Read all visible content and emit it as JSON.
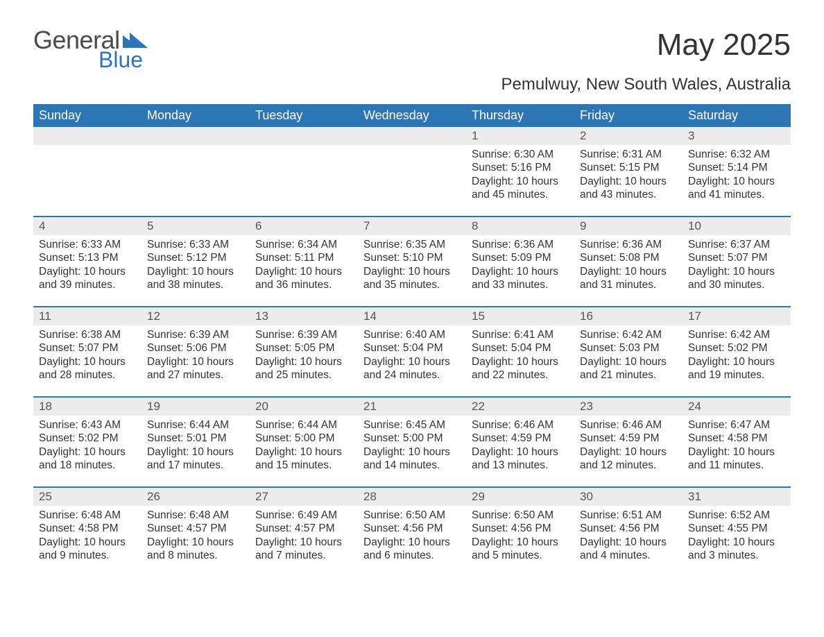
{
  "brand": {
    "word1": "General",
    "word2": "Blue",
    "accent_color": "#2e75b6"
  },
  "title": "May 2025",
  "subtitle": "Pemulwuy, New South Wales, Australia",
  "colors": {
    "header_bg": "#2e75b6",
    "header_text": "#ffffff",
    "daynum_bg": "#ececec",
    "daynum_text": "#555555",
    "body_text": "#333333",
    "page_bg": "#ffffff",
    "week_border": "#2e75b6"
  },
  "typography": {
    "title_fontsize": 44,
    "subtitle_fontsize": 24,
    "header_fontsize": 18,
    "daynum_fontsize": 17,
    "body_fontsize": 15.5,
    "font_family": "Arial"
  },
  "layout": {
    "columns": 7,
    "rows": 5,
    "first_day_column_index": 4
  },
  "day_headers": [
    "Sunday",
    "Monday",
    "Tuesday",
    "Wednesday",
    "Thursday",
    "Friday",
    "Saturday"
  ],
  "days": [
    {
      "n": "1",
      "sunrise": "Sunrise: 6:30 AM",
      "sunset": "Sunset: 5:16 PM",
      "daylight": "Daylight: 10 hours and 45 minutes."
    },
    {
      "n": "2",
      "sunrise": "Sunrise: 6:31 AM",
      "sunset": "Sunset: 5:15 PM",
      "daylight": "Daylight: 10 hours and 43 minutes."
    },
    {
      "n": "3",
      "sunrise": "Sunrise: 6:32 AM",
      "sunset": "Sunset: 5:14 PM",
      "daylight": "Daylight: 10 hours and 41 minutes."
    },
    {
      "n": "4",
      "sunrise": "Sunrise: 6:33 AM",
      "sunset": "Sunset: 5:13 PM",
      "daylight": "Daylight: 10 hours and 39 minutes."
    },
    {
      "n": "5",
      "sunrise": "Sunrise: 6:33 AM",
      "sunset": "Sunset: 5:12 PM",
      "daylight": "Daylight: 10 hours and 38 minutes."
    },
    {
      "n": "6",
      "sunrise": "Sunrise: 6:34 AM",
      "sunset": "Sunset: 5:11 PM",
      "daylight": "Daylight: 10 hours and 36 minutes."
    },
    {
      "n": "7",
      "sunrise": "Sunrise: 6:35 AM",
      "sunset": "Sunset: 5:10 PM",
      "daylight": "Daylight: 10 hours and 35 minutes."
    },
    {
      "n": "8",
      "sunrise": "Sunrise: 6:36 AM",
      "sunset": "Sunset: 5:09 PM",
      "daylight": "Daylight: 10 hours and 33 minutes."
    },
    {
      "n": "9",
      "sunrise": "Sunrise: 6:36 AM",
      "sunset": "Sunset: 5:08 PM",
      "daylight": "Daylight: 10 hours and 31 minutes."
    },
    {
      "n": "10",
      "sunrise": "Sunrise: 6:37 AM",
      "sunset": "Sunset: 5:07 PM",
      "daylight": "Daylight: 10 hours and 30 minutes."
    },
    {
      "n": "11",
      "sunrise": "Sunrise: 6:38 AM",
      "sunset": "Sunset: 5:07 PM",
      "daylight": "Daylight: 10 hours and 28 minutes."
    },
    {
      "n": "12",
      "sunrise": "Sunrise: 6:39 AM",
      "sunset": "Sunset: 5:06 PM",
      "daylight": "Daylight: 10 hours and 27 minutes."
    },
    {
      "n": "13",
      "sunrise": "Sunrise: 6:39 AM",
      "sunset": "Sunset: 5:05 PM",
      "daylight": "Daylight: 10 hours and 25 minutes."
    },
    {
      "n": "14",
      "sunrise": "Sunrise: 6:40 AM",
      "sunset": "Sunset: 5:04 PM",
      "daylight": "Daylight: 10 hours and 24 minutes."
    },
    {
      "n": "15",
      "sunrise": "Sunrise: 6:41 AM",
      "sunset": "Sunset: 5:04 PM",
      "daylight": "Daylight: 10 hours and 22 minutes."
    },
    {
      "n": "16",
      "sunrise": "Sunrise: 6:42 AM",
      "sunset": "Sunset: 5:03 PM",
      "daylight": "Daylight: 10 hours and 21 minutes."
    },
    {
      "n": "17",
      "sunrise": "Sunrise: 6:42 AM",
      "sunset": "Sunset: 5:02 PM",
      "daylight": "Daylight: 10 hours and 19 minutes."
    },
    {
      "n": "18",
      "sunrise": "Sunrise: 6:43 AM",
      "sunset": "Sunset: 5:02 PM",
      "daylight": "Daylight: 10 hours and 18 minutes."
    },
    {
      "n": "19",
      "sunrise": "Sunrise: 6:44 AM",
      "sunset": "Sunset: 5:01 PM",
      "daylight": "Daylight: 10 hours and 17 minutes."
    },
    {
      "n": "20",
      "sunrise": "Sunrise: 6:44 AM",
      "sunset": "Sunset: 5:00 PM",
      "daylight": "Daylight: 10 hours and 15 minutes."
    },
    {
      "n": "21",
      "sunrise": "Sunrise: 6:45 AM",
      "sunset": "Sunset: 5:00 PM",
      "daylight": "Daylight: 10 hours and 14 minutes."
    },
    {
      "n": "22",
      "sunrise": "Sunrise: 6:46 AM",
      "sunset": "Sunset: 4:59 PM",
      "daylight": "Daylight: 10 hours and 13 minutes."
    },
    {
      "n": "23",
      "sunrise": "Sunrise: 6:46 AM",
      "sunset": "Sunset: 4:59 PM",
      "daylight": "Daylight: 10 hours and 12 minutes."
    },
    {
      "n": "24",
      "sunrise": "Sunrise: 6:47 AM",
      "sunset": "Sunset: 4:58 PM",
      "daylight": "Daylight: 10 hours and 11 minutes."
    },
    {
      "n": "25",
      "sunrise": "Sunrise: 6:48 AM",
      "sunset": "Sunset: 4:58 PM",
      "daylight": "Daylight: 10 hours and 9 minutes."
    },
    {
      "n": "26",
      "sunrise": "Sunrise: 6:48 AM",
      "sunset": "Sunset: 4:57 PM",
      "daylight": "Daylight: 10 hours and 8 minutes."
    },
    {
      "n": "27",
      "sunrise": "Sunrise: 6:49 AM",
      "sunset": "Sunset: 4:57 PM",
      "daylight": "Daylight: 10 hours and 7 minutes."
    },
    {
      "n": "28",
      "sunrise": "Sunrise: 6:50 AM",
      "sunset": "Sunset: 4:56 PM",
      "daylight": "Daylight: 10 hours and 6 minutes."
    },
    {
      "n": "29",
      "sunrise": "Sunrise: 6:50 AM",
      "sunset": "Sunset: 4:56 PM",
      "daylight": "Daylight: 10 hours and 5 minutes."
    },
    {
      "n": "30",
      "sunrise": "Sunrise: 6:51 AM",
      "sunset": "Sunset: 4:56 PM",
      "daylight": "Daylight: 10 hours and 4 minutes."
    },
    {
      "n": "31",
      "sunrise": "Sunrise: 6:52 AM",
      "sunset": "Sunset: 4:55 PM",
      "daylight": "Daylight: 10 hours and 3 minutes."
    }
  ]
}
